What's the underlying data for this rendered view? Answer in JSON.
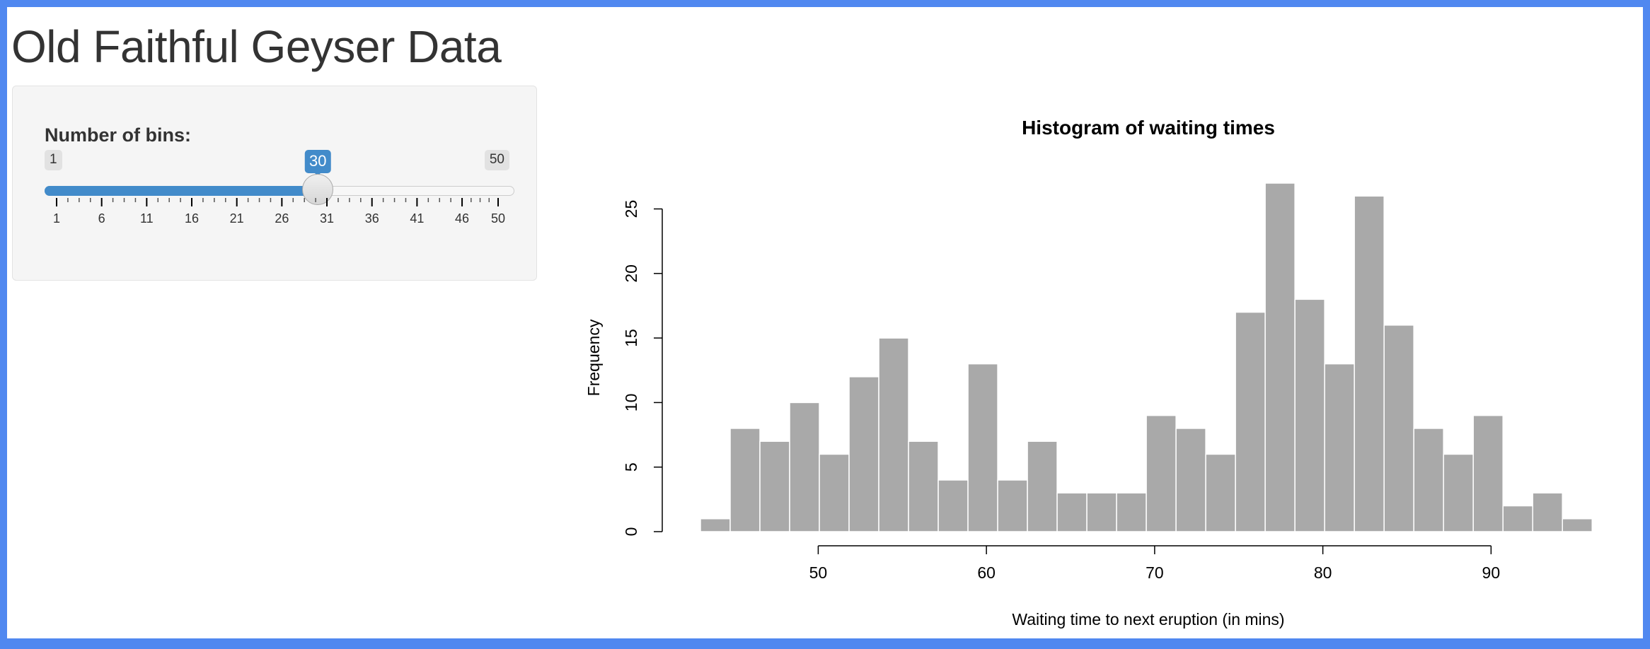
{
  "app": {
    "title": "Old Faithful Geyser Data"
  },
  "sidebar": {
    "slider": {
      "label": "Number of bins:",
      "min": 1,
      "max": 50,
      "value": 30,
      "min_label": "1",
      "max_label": "50",
      "value_label": "30",
      "tick_labels": [
        "1",
        "6",
        "11",
        "16",
        "21",
        "26",
        "31",
        "36",
        "41",
        "46",
        "50"
      ],
      "accent_color": "#428bca"
    }
  },
  "chart_data": {
    "type": "bar",
    "title": "Histogram of waiting times",
    "xlabel": "Waiting time to next eruption (in mins)",
    "ylabel": "Frequency",
    "bar_color": "#a9a9a9",
    "bin_start": 43.0,
    "bin_width": 1.767,
    "values": [
      1,
      8,
      7,
      10,
      6,
      12,
      15,
      7,
      4,
      13,
      4,
      7,
      3,
      3,
      3,
      9,
      8,
      6,
      17,
      27,
      18,
      13,
      26,
      16,
      8,
      6,
      9,
      2,
      3,
      1
    ],
    "xticks": [
      50,
      60,
      70,
      80,
      90
    ],
    "yticks": [
      0,
      5,
      10,
      15,
      20,
      25
    ],
    "xlim": [
      43,
      96
    ],
    "ylim": [
      0,
      27
    ],
    "grid": false
  }
}
